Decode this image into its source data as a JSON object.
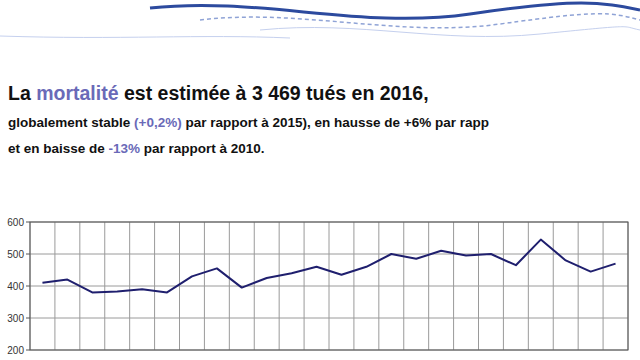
{
  "text_block": {
    "lines": [
      [
        {
          "text": "La ",
          "highlight": false
        },
        {
          "text": "mortalité",
          "highlight": true
        },
        {
          "text": " est estimée à 3 469 tués en 2016,",
          "highlight": false
        }
      ],
      [
        {
          "text": "globalement stable ",
          "highlight": false
        },
        {
          "text": "(+0,2%)",
          "highlight": true
        },
        {
          "text": " par rapport à 2015), en hausse de +6% par rapp",
          "highlight": false
        }
      ],
      [
        {
          "text": "et en baisse de ",
          "highlight": false
        },
        {
          "text": "-13%",
          "highlight": true
        },
        {
          "text": " par rapport à 2010.",
          "highlight": false
        }
      ]
    ]
  },
  "chart_data": {
    "type": "line",
    "categories": [
      null,
      null,
      null,
      null,
      null,
      null,
      null,
      null,
      null,
      null,
      null,
      null,
      null,
      null,
      null,
      null,
      null,
      null,
      null,
      null,
      null,
      null,
      null,
      null
    ],
    "values": [
      410,
      420,
      380,
      383,
      390,
      380,
      430,
      455,
      395,
      425,
      440,
      460,
      435,
      460,
      500,
      485,
      510,
      495,
      500,
      465,
      545,
      480,
      445,
      470
    ],
    "color": "#1f1f6e",
    "ylim": [
      200,
      600
    ],
    "yticks": [
      200,
      300,
      400,
      500,
      600
    ],
    "grid": true,
    "tick_labels": "y"
  }
}
